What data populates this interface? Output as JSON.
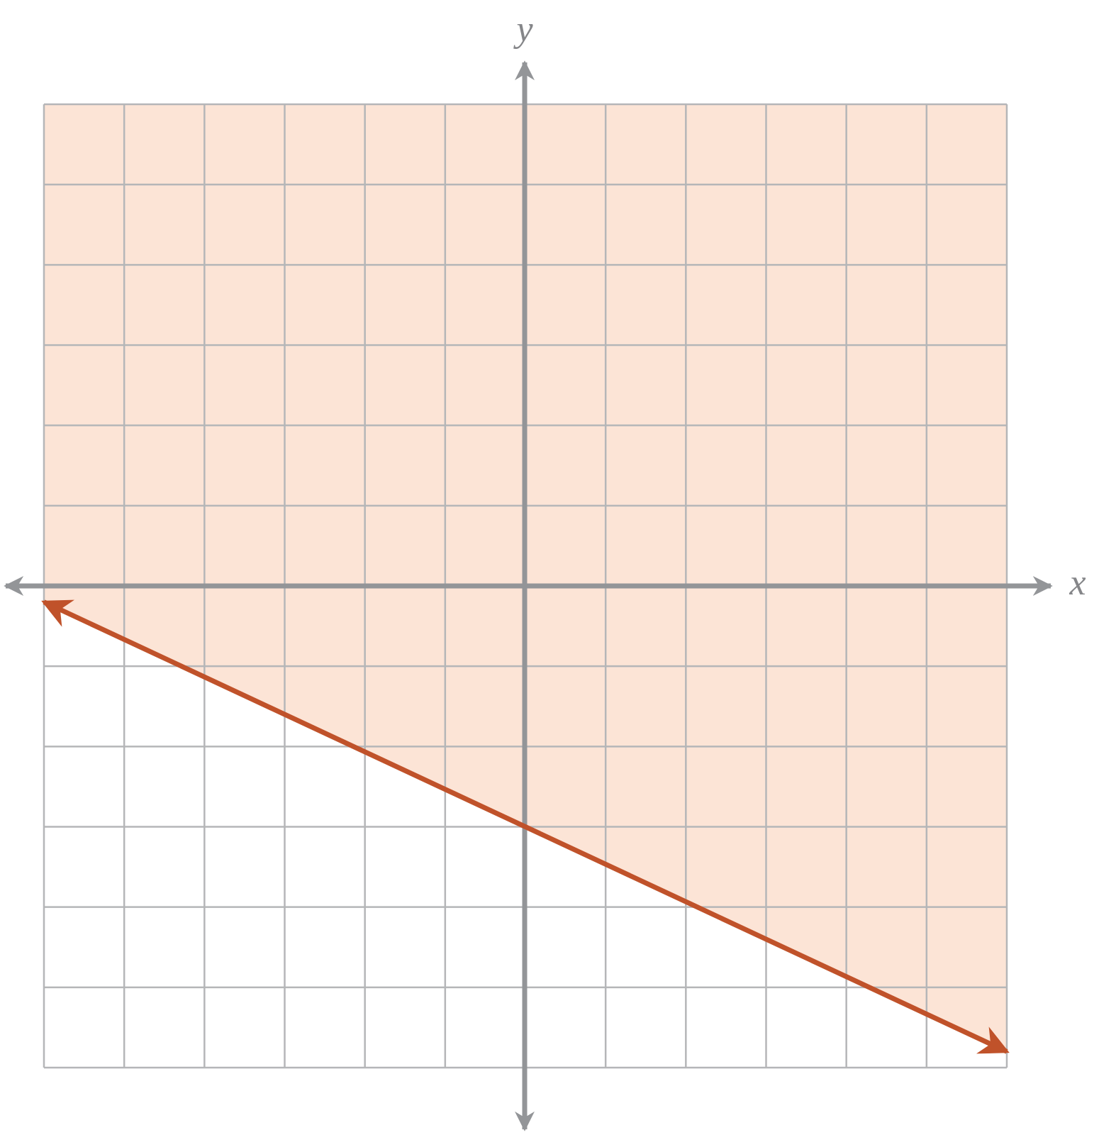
{
  "chart_data": {
    "type": "line",
    "x_label": "x",
    "y_label": "y",
    "x": [
      -6,
      6
    ],
    "series": [
      {
        "values": [
          -0.2,
          -5.8
        ],
        "color": "#c0522a"
      }
    ],
    "shade": "above",
    "shade_color": "#fce4d6",
    "xlim": [
      -6,
      6
    ],
    "ylim": [
      -6,
      6
    ],
    "xticks": [
      -6,
      -5,
      -4,
      -3,
      -2,
      -1,
      0,
      1,
      2,
      3,
      4,
      5,
      6
    ],
    "yticks": [
      -6,
      -5,
      -4,
      -3,
      -2,
      -1,
      0,
      1,
      2,
      3,
      4,
      5,
      6
    ],
    "grid": true
  }
}
